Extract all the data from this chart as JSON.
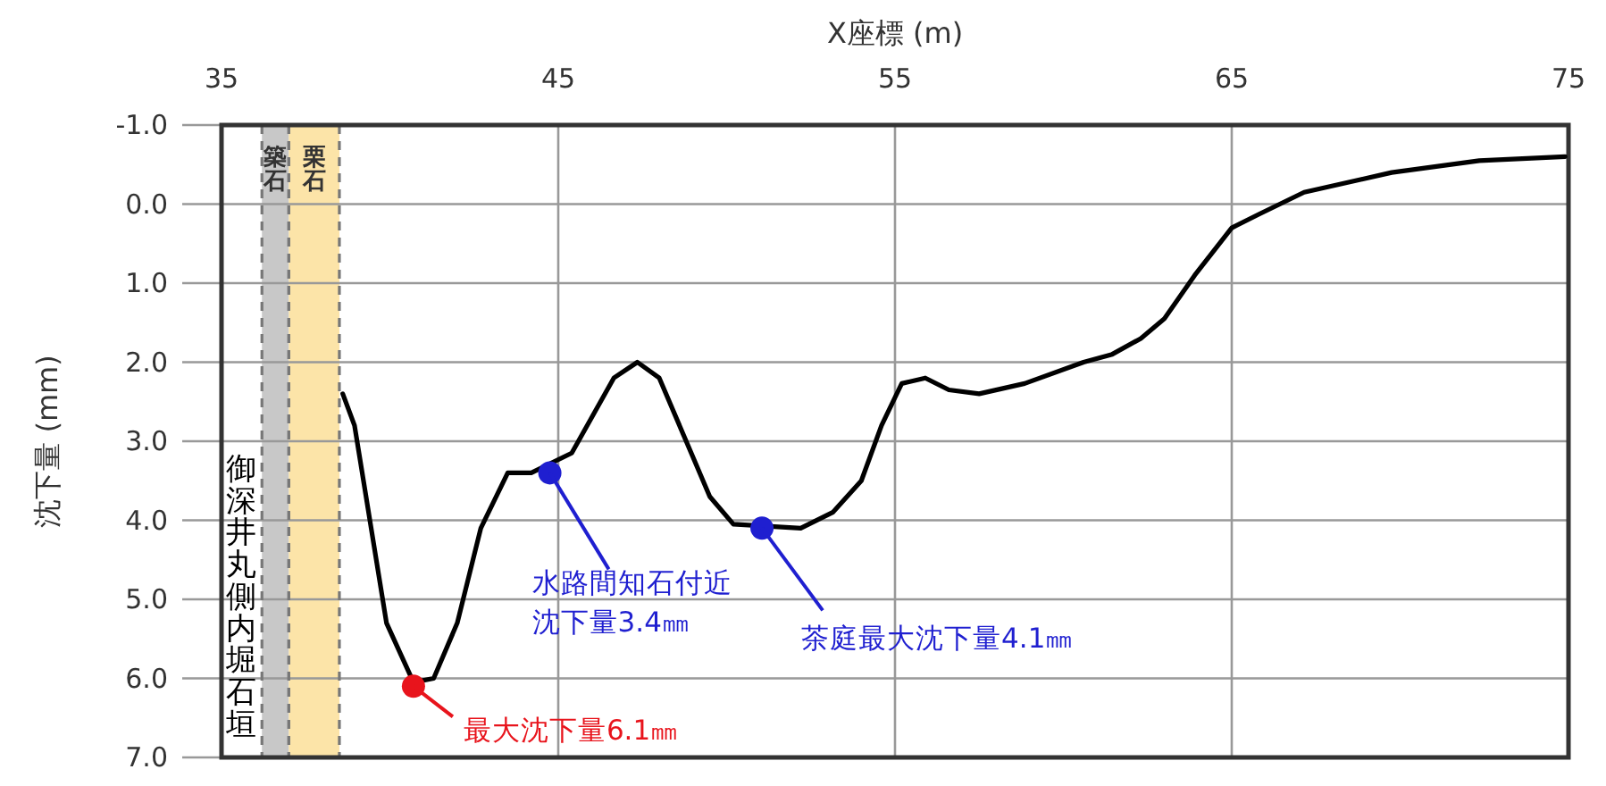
{
  "chart_data": {
    "type": "line",
    "xlabel": "X座標 (m)",
    "ylabel": "沈下量 (mm)",
    "xlim": [
      35,
      75
    ],
    "xticks": [
      35,
      45,
      55,
      65,
      75
    ],
    "ylim": [
      7,
      -1
    ],
    "yticks": [
      {
        "value": -1,
        "label": "-1.0"
      },
      {
        "value": 0,
        "label": "0.0"
      },
      {
        "value": 1,
        "label": "1.0"
      },
      {
        "value": 2,
        "label": "2.0"
      },
      {
        "value": 3,
        "label": "3.0"
      },
      {
        "value": 4,
        "label": "4.0"
      },
      {
        "value": 5,
        "label": "5.0"
      },
      {
        "value": 6,
        "label": "6.0"
      },
      {
        "value": 7,
        "label": "7.0"
      }
    ],
    "grid": true,
    "series": [
      {
        "type": "line",
        "color": "#000000",
        "x": [
          38.6,
          38.95,
          39.9,
          40.7,
          41.3,
          42.0,
          42.7,
          43.5,
          44.2,
          45.4,
          46.65,
          47.35,
          48.0,
          49.5,
          50.2,
          52.2,
          53.15,
          54.0,
          54.6,
          55.2,
          55.9,
          56.6,
          57.5,
          58.85,
          60.6,
          61.45,
          62.3,
          63.0,
          63.9,
          65.0,
          65.8,
          67.15,
          69.75,
          72.35,
          74.9
        ],
        "values": [
          2.4,
          2.8,
          5.3,
          6.05,
          6.0,
          5.3,
          4.1,
          3.4,
          3.4,
          3.15,
          2.2,
          2.0,
          2.2,
          3.7,
          4.05,
          4.1,
          3.9,
          3.5,
          2.8,
          2.27,
          2.2,
          2.35,
          2.4,
          2.27,
          2.0,
          1.9,
          1.7,
          1.45,
          0.9,
          0.3,
          0.13,
          -0.15,
          -0.4,
          -0.55,
          -0.6
        ]
      },
      {
        "type": "scatter",
        "x": [
          40.7,
          44.75,
          51.05
        ],
        "values": [
          6.1,
          3.4,
          4.1
        ],
        "colors": [
          "#e8141c",
          "#1f1fd0",
          "#1f1fd0"
        ]
      }
    ],
    "bands": [
      {
        "axis": "x",
        "from": 36.2,
        "to": 37.0,
        "label": "築石",
        "color": "#c8c8c8"
      },
      {
        "axis": "x",
        "from": 37.0,
        "to": 38.5,
        "label": "栗石",
        "color": "#fce4a8"
      }
    ],
    "annotations": [
      {
        "text": "最大沈下量6.1㎜",
        "x": 40.7,
        "y": 6.1
      },
      {
        "text": "水路間知石付近沈下量3.4㎜",
        "x": 44.75,
        "y": 3.4
      },
      {
        "text": "茶庭最大沈下量4.1㎜",
        "x": 51.05,
        "y": 4.1
      },
      "御深井丸側内堀石垣"
    ]
  }
}
